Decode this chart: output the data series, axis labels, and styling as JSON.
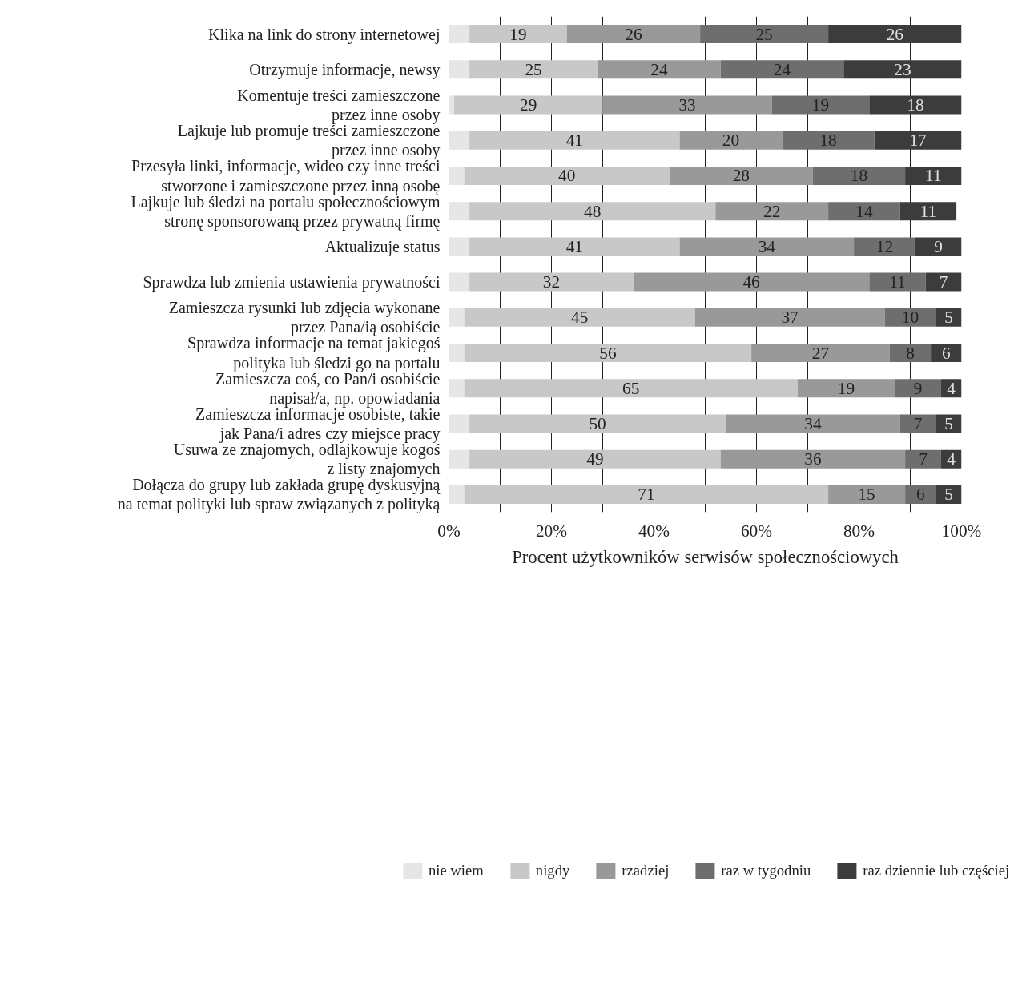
{
  "chart_data": {
    "type": "bar",
    "orientation": "horizontal",
    "stacked": true,
    "xlabel": "Procent użytkowników serwisów społecznościowych",
    "categories": [
      "Klika na link do strony internetowej",
      "Otrzymuje informacje, newsy",
      "Komentuje treści zamieszczone\nprzez inne osoby",
      "Lajkuje lub promuje treści zamieszczone\nprzez inne osoby",
      "Przesyła linki, informacje, wideo czy inne treści\nstworzone i zamieszczone przez inną osobę",
      "Lajkuje lub śledzi na portalu społecznościowym\nstronę sponsorowaną przez prywatną firmę",
      "Aktualizuje status",
      "Sprawdza lub zmienia ustawienia prywatności",
      "Zamieszcza rysunki lub zdjęcia wykonane\nprzez Pana/ią osobiście",
      "Sprawdza informacje na temat jakiegoś\npolityka lub śledzi go na portalu",
      "Zamieszcza coś, co Pan/i osobiście\nnapisał/a, np. opowiadania",
      "Zamieszcza informacje osobiste, takie\njak Pana/i adres czy miejsce pracy",
      "Usuwa ze znajomych, odlajkowuje kogoś\nz listy znajomych",
      "Dołącza do grupy lub zakłada grupę dyskusyjną\nna temat polityki lub spraw związanych z polityką"
    ],
    "series": [
      {
        "name": "nie wiem",
        "color": "#e6e6e6",
        "values": [
          4,
          4,
          1,
          4,
          3,
          4,
          4,
          4,
          3,
          3,
          3,
          4,
          4,
          3
        ],
        "value_labels": [
          null,
          null,
          null,
          null,
          null,
          null,
          null,
          null,
          null,
          null,
          null,
          null,
          null,
          null
        ]
      },
      {
        "name": "nigdy",
        "color": "#c8c8c8",
        "values": [
          19,
          25,
          29,
          41,
          40,
          48,
          41,
          32,
          45,
          56,
          65,
          50,
          49,
          71
        ],
        "value_labels": [
          "19",
          "25",
          "29",
          "41",
          "40",
          "48",
          "41",
          "32",
          "45",
          "56",
          "65",
          "50",
          "49",
          "71"
        ]
      },
      {
        "name": "rzadziej",
        "color": "#999999",
        "values": [
          26,
          24,
          33,
          20,
          28,
          22,
          34,
          46,
          37,
          27,
          19,
          34,
          36,
          15
        ],
        "value_labels": [
          "26",
          "24",
          "33",
          "20",
          "28",
          "22",
          "34",
          "46",
          "37",
          "27",
          "19",
          "34",
          "36",
          "15"
        ]
      },
      {
        "name": "raz w tygodniu",
        "color": "#6e6e6e",
        "values": [
          25,
          24,
          19,
          18,
          18,
          14,
          12,
          11,
          10,
          8,
          9,
          7,
          7,
          6
        ],
        "value_labels": [
          "25",
          "24",
          "19",
          "18",
          "18",
          "14",
          "12",
          "11",
          "10",
          "8",
          "9",
          "7",
          "7",
          "6"
        ]
      },
      {
        "name": "raz dziennie lub częściej",
        "color": "#3c3c3c",
        "values": [
          26,
          23,
          18,
          17,
          11,
          11,
          9,
          7,
          5,
          6,
          4,
          5,
          4,
          5
        ],
        "value_labels": [
          "26",
          "23",
          "18",
          "17",
          "11",
          "11",
          "9",
          "7",
          "5",
          "6",
          "4",
          "5",
          "4",
          "5"
        ]
      }
    ],
    "xlim": [
      0,
      100
    ],
    "xticks": [
      {
        "value": 0,
        "label": "0%"
      },
      {
        "value": 10,
        "label": null
      },
      {
        "value": 20,
        "label": "20%"
      },
      {
        "value": 30,
        "label": null
      },
      {
        "value": 40,
        "label": "40%"
      },
      {
        "value": 50,
        "label": null
      },
      {
        "value": 60,
        "label": "60%"
      },
      {
        "value": 70,
        "label": null
      },
      {
        "value": 80,
        "label": "80%"
      },
      {
        "value": 90,
        "label": null
      },
      {
        "value": 100,
        "label": "100%"
      }
    ],
    "grid": "x",
    "legend": "bottom"
  }
}
